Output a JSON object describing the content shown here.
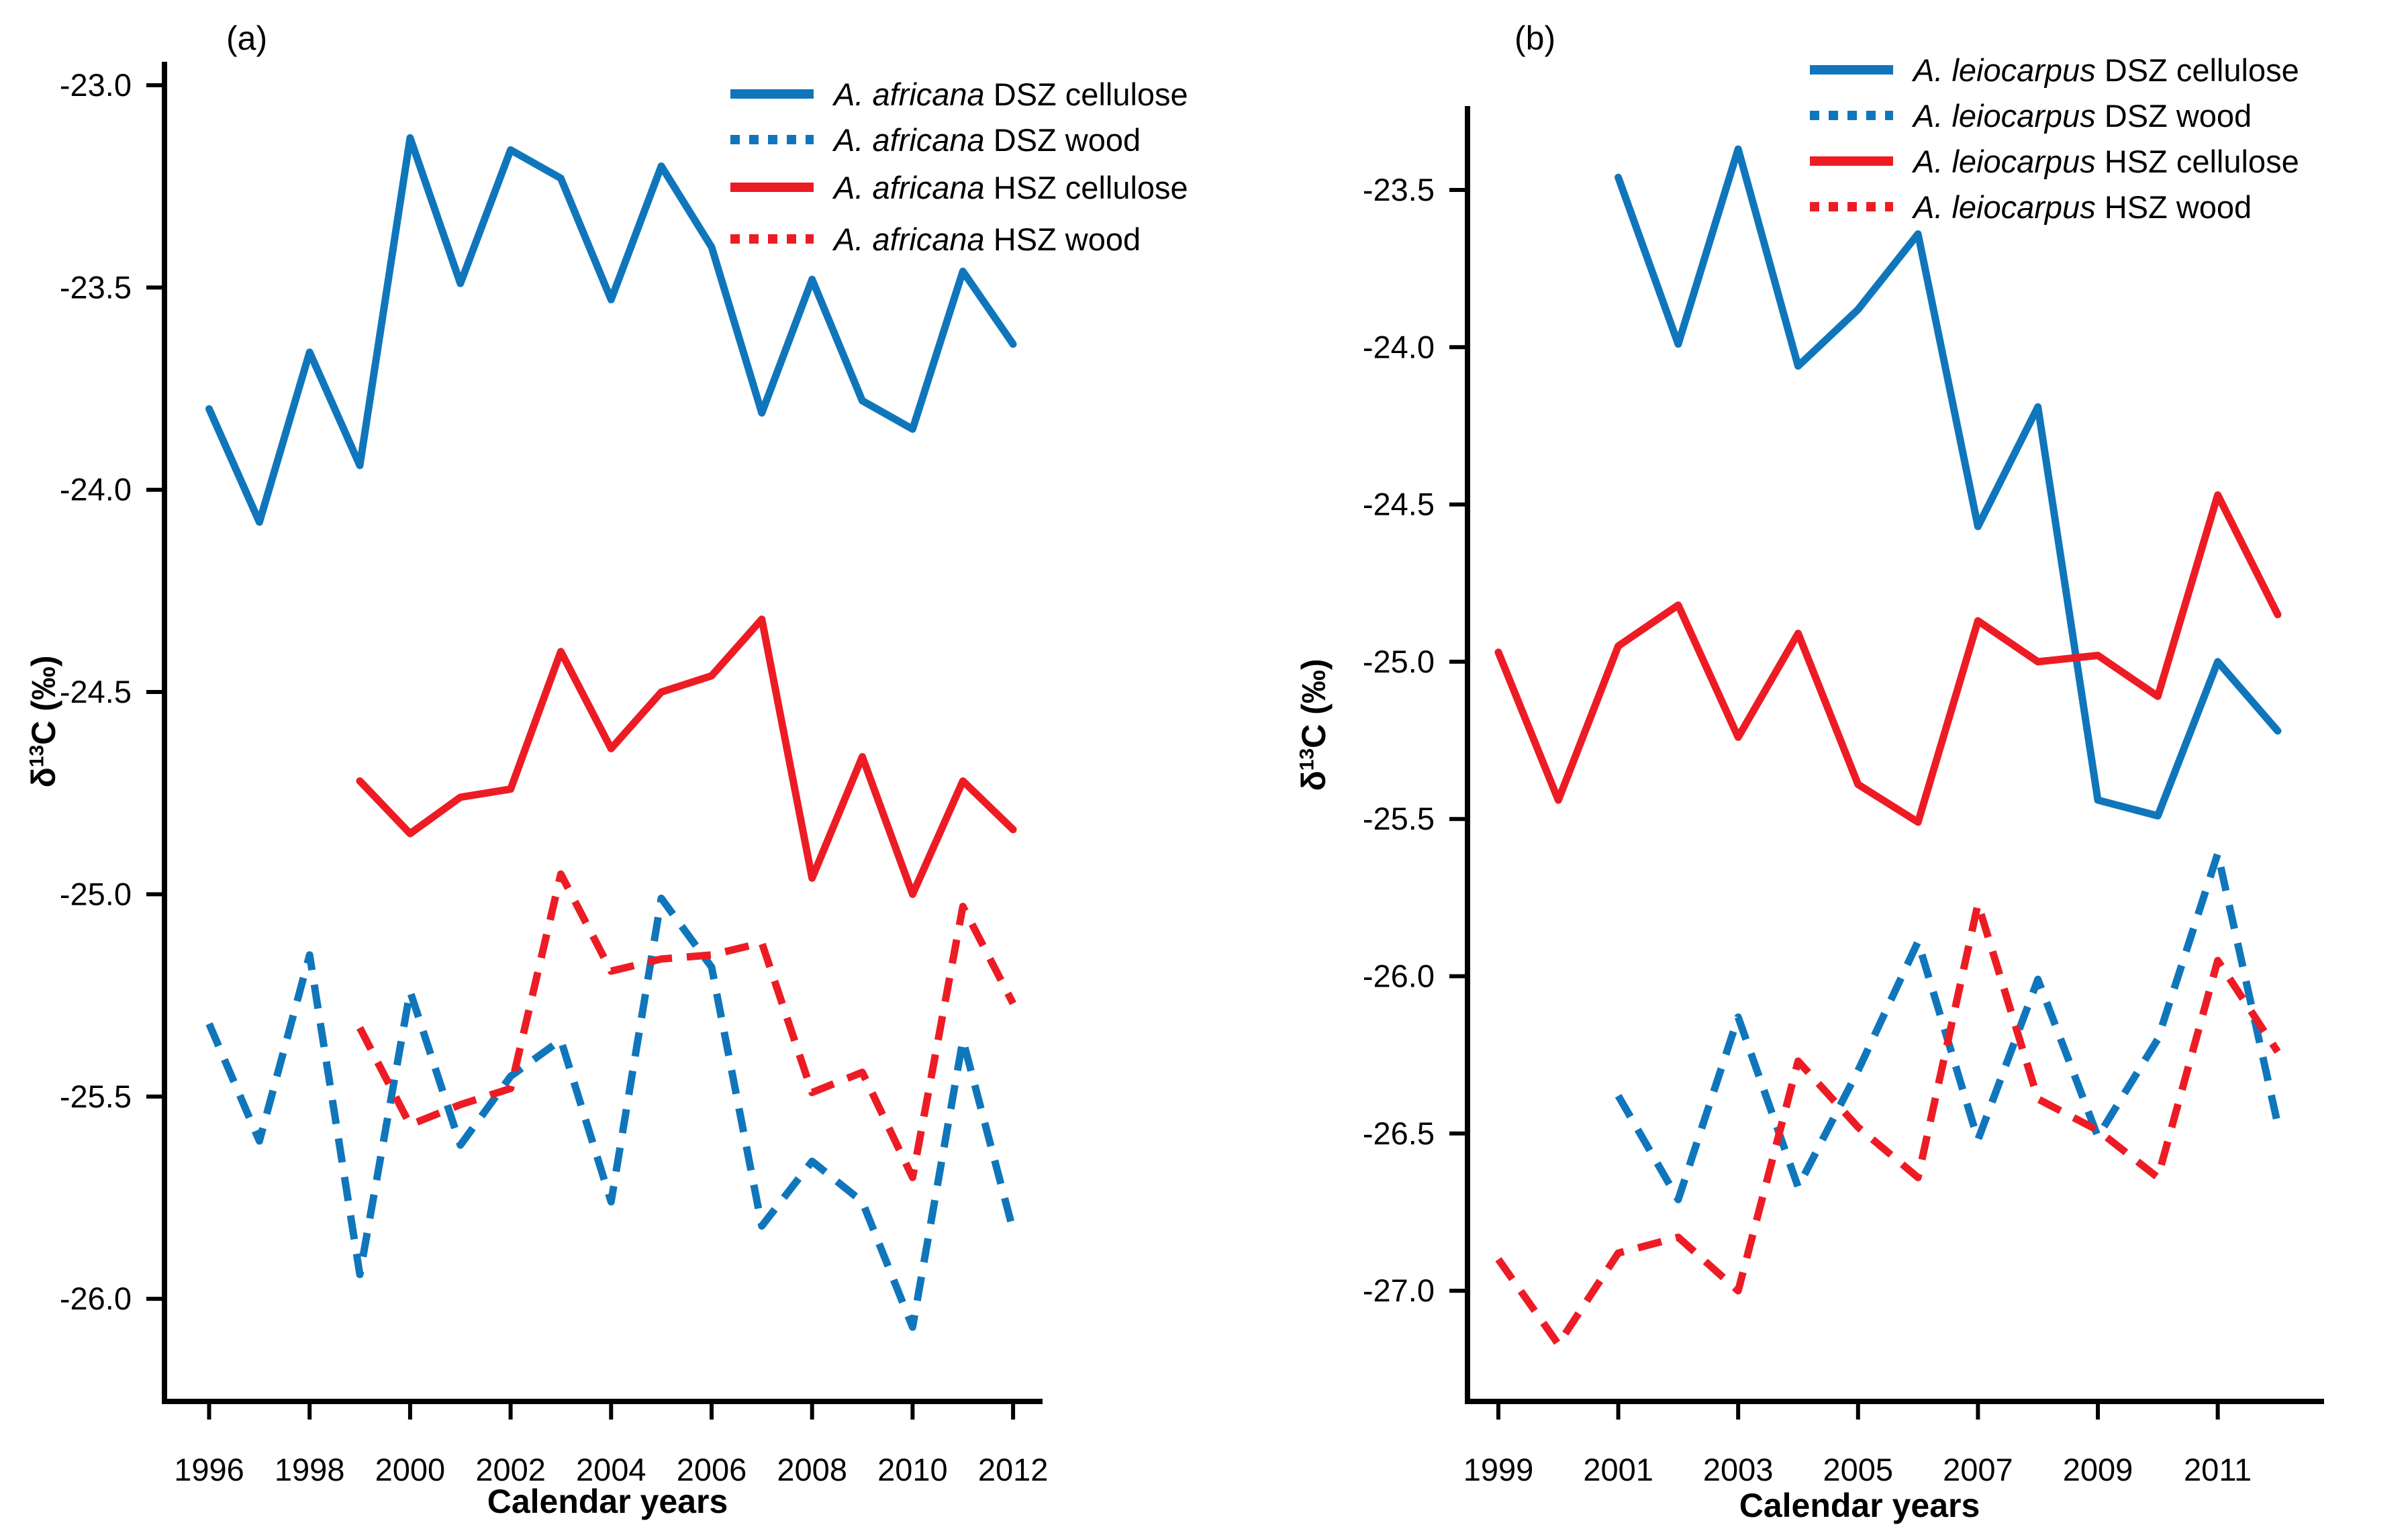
{
  "figure": {
    "colors": {
      "blue": "#1076BC",
      "red": "#ED1C24",
      "axis": "#000000"
    }
  },
  "chart_data": [
    {
      "id": "a",
      "type": "line",
      "panel_label": "(a)",
      "xlabel": "Calendar years",
      "ylabel": {
        "prefix": "δ",
        "sup": "13",
        "suffix": "C (‰)"
      },
      "x_ticks": [
        1996,
        1998,
        2000,
        2002,
        2004,
        2006,
        2008,
        2010,
        2012
      ],
      "y_ticks": [
        -23.0,
        -23.5,
        -24.0,
        -24.5,
        -25.0,
        -25.5,
        -26.0
      ],
      "xlim": [
        1995.1,
        2012.6
      ],
      "ylim": [
        -26.25,
        -22.94
      ],
      "grid": false,
      "legend_position": "top-right-inside",
      "series": [
        {
          "name": "A. africana DSZ cellulose",
          "species": "A. africana",
          "label_rest": " DSZ cellulose",
          "color": "#1076BC",
          "dash": "solid",
          "x": [
            1996,
            1997,
            1998,
            1999,
            2000,
            2001,
            2002,
            2003,
            2004,
            2005,
            2006,
            2007,
            2008,
            2009,
            2010,
            2011,
            2012
          ],
          "y": [
            -23.8,
            -24.08,
            -23.66,
            -23.94,
            -23.13,
            -23.49,
            -23.16,
            -23.23,
            -23.53,
            -23.2,
            -23.4,
            -23.81,
            -23.48,
            -23.78,
            -23.85,
            -23.46,
            -23.64
          ]
        },
        {
          "name": "A. africana DSZ wood",
          "species": "A. africana",
          "label_rest": " DSZ wood",
          "color": "#1076BC",
          "dash": "dashed",
          "x": [
            1996,
            1997,
            1998,
            1999,
            2000,
            2001,
            2002,
            2003,
            2004,
            2005,
            2006,
            2007,
            2008,
            2009,
            2010,
            2011,
            2012
          ],
          "y": [
            -25.32,
            -25.61,
            -25.15,
            -25.94,
            -25.24,
            -25.62,
            -25.45,
            -25.36,
            -25.76,
            -25.01,
            -25.18,
            -25.82,
            -25.66,
            -25.76,
            -26.07,
            -25.36,
            -25.83
          ]
        },
        {
          "name": "A. africana HSZ cellulose",
          "species": "A. africana",
          "label_rest": " HSZ cellulose",
          "color": "#ED1C24",
          "dash": "solid",
          "x": [
            1999,
            2000,
            2001,
            2002,
            2003,
            2004,
            2005,
            2006,
            2007,
            2008,
            2009,
            2010,
            2011,
            2012
          ],
          "y": [
            -24.72,
            -24.85,
            -24.76,
            -24.74,
            -24.4,
            -24.64,
            -24.5,
            -24.46,
            -24.32,
            -24.96,
            -24.66,
            -25.0,
            -24.72,
            -24.84
          ]
        },
        {
          "name": "A. africana HSZ wood",
          "species": "A. africana",
          "label_rest": " HSZ wood",
          "color": "#ED1C24",
          "dash": "dashed",
          "x": [
            1999,
            2000,
            2001,
            2002,
            2003,
            2004,
            2005,
            2006,
            2007,
            2008,
            2009,
            2010,
            2011,
            2012
          ],
          "y": [
            -25.33,
            -25.57,
            -25.52,
            -25.48,
            -24.95,
            -25.19,
            -25.16,
            -25.15,
            -25.12,
            -25.49,
            -25.44,
            -25.7,
            -25.03,
            -25.27
          ]
        }
      ]
    },
    {
      "id": "b",
      "type": "line",
      "panel_label": "(b)",
      "xlabel": "Calendar years",
      "ylabel": {
        "prefix": "δ",
        "sup": "13",
        "suffix": "C (‰)"
      },
      "x_ticks": [
        1999,
        2001,
        2003,
        2005,
        2007,
        2009,
        2011
      ],
      "y_ticks": [
        -23.5,
        -24.0,
        -24.5,
        -25.0,
        -25.5,
        -26.0,
        -26.5,
        -27.0
      ],
      "xlim": [
        1998.5,
        2012.8
      ],
      "ylim": [
        -27.35,
        -23.23
      ],
      "grid": false,
      "legend_position": "top-right-inside",
      "series": [
        {
          "name": "A. leiocarpus DSZ cellulose",
          "species": "A. leiocarpus",
          "label_rest": " DSZ cellulose",
          "color": "#1076BC",
          "dash": "solid",
          "x": [
            2001,
            2002,
            2003,
            2004,
            2005,
            2006,
            2007,
            2008,
            2009,
            2010,
            2011,
            2012
          ],
          "y": [
            -23.46,
            -23.99,
            -23.37,
            -24.06,
            -23.88,
            -23.64,
            -24.57,
            -24.19,
            -25.44,
            -25.49,
            -25.0,
            -25.22
          ]
        },
        {
          "name": "A. leiocarpus DSZ wood",
          "species": "A. leiocarpus",
          "label_rest": " DSZ wood",
          "color": "#1076BC",
          "dash": "dashed",
          "x": [
            2001,
            2002,
            2003,
            2004,
            2005,
            2006,
            2007,
            2008,
            2009,
            2010,
            2011,
            2012
          ],
          "y": [
            -26.38,
            -26.71,
            -26.13,
            -26.67,
            -26.3,
            -25.89,
            -26.52,
            -26.01,
            -26.51,
            -26.2,
            -25.61,
            -26.47
          ]
        },
        {
          "name": "A. leiocarpus HSZ cellulose",
          "species": "A. leiocarpus",
          "label_rest": " HSZ cellulose",
          "color": "#ED1C24",
          "dash": "solid",
          "x": [
            1999,
            2000,
            2001,
            2002,
            2003,
            2004,
            2005,
            2006,
            2007,
            2008,
            2009,
            2010,
            2011,
            2012
          ],
          "y": [
            -24.97,
            -25.44,
            -24.95,
            -24.82,
            -25.24,
            -24.91,
            -25.39,
            -25.51,
            -24.87,
            -25.0,
            -24.98,
            -25.11,
            -24.47,
            -24.85
          ]
        },
        {
          "name": "A. leiocarpus HSZ wood",
          "species": "A. leiocarpus",
          "label_rest": " HSZ wood",
          "color": "#ED1C24",
          "dash": "dashed",
          "x": [
            1999,
            2000,
            2001,
            2002,
            2003,
            2004,
            2005,
            2006,
            2007,
            2008,
            2009,
            2010,
            2011,
            2012
          ],
          "y": [
            -26.9,
            -27.17,
            -26.88,
            -26.83,
            -27.0,
            -26.27,
            -26.48,
            -26.64,
            -25.77,
            -26.39,
            -26.49,
            -26.64,
            -25.95,
            -26.24
          ]
        }
      ]
    }
  ]
}
